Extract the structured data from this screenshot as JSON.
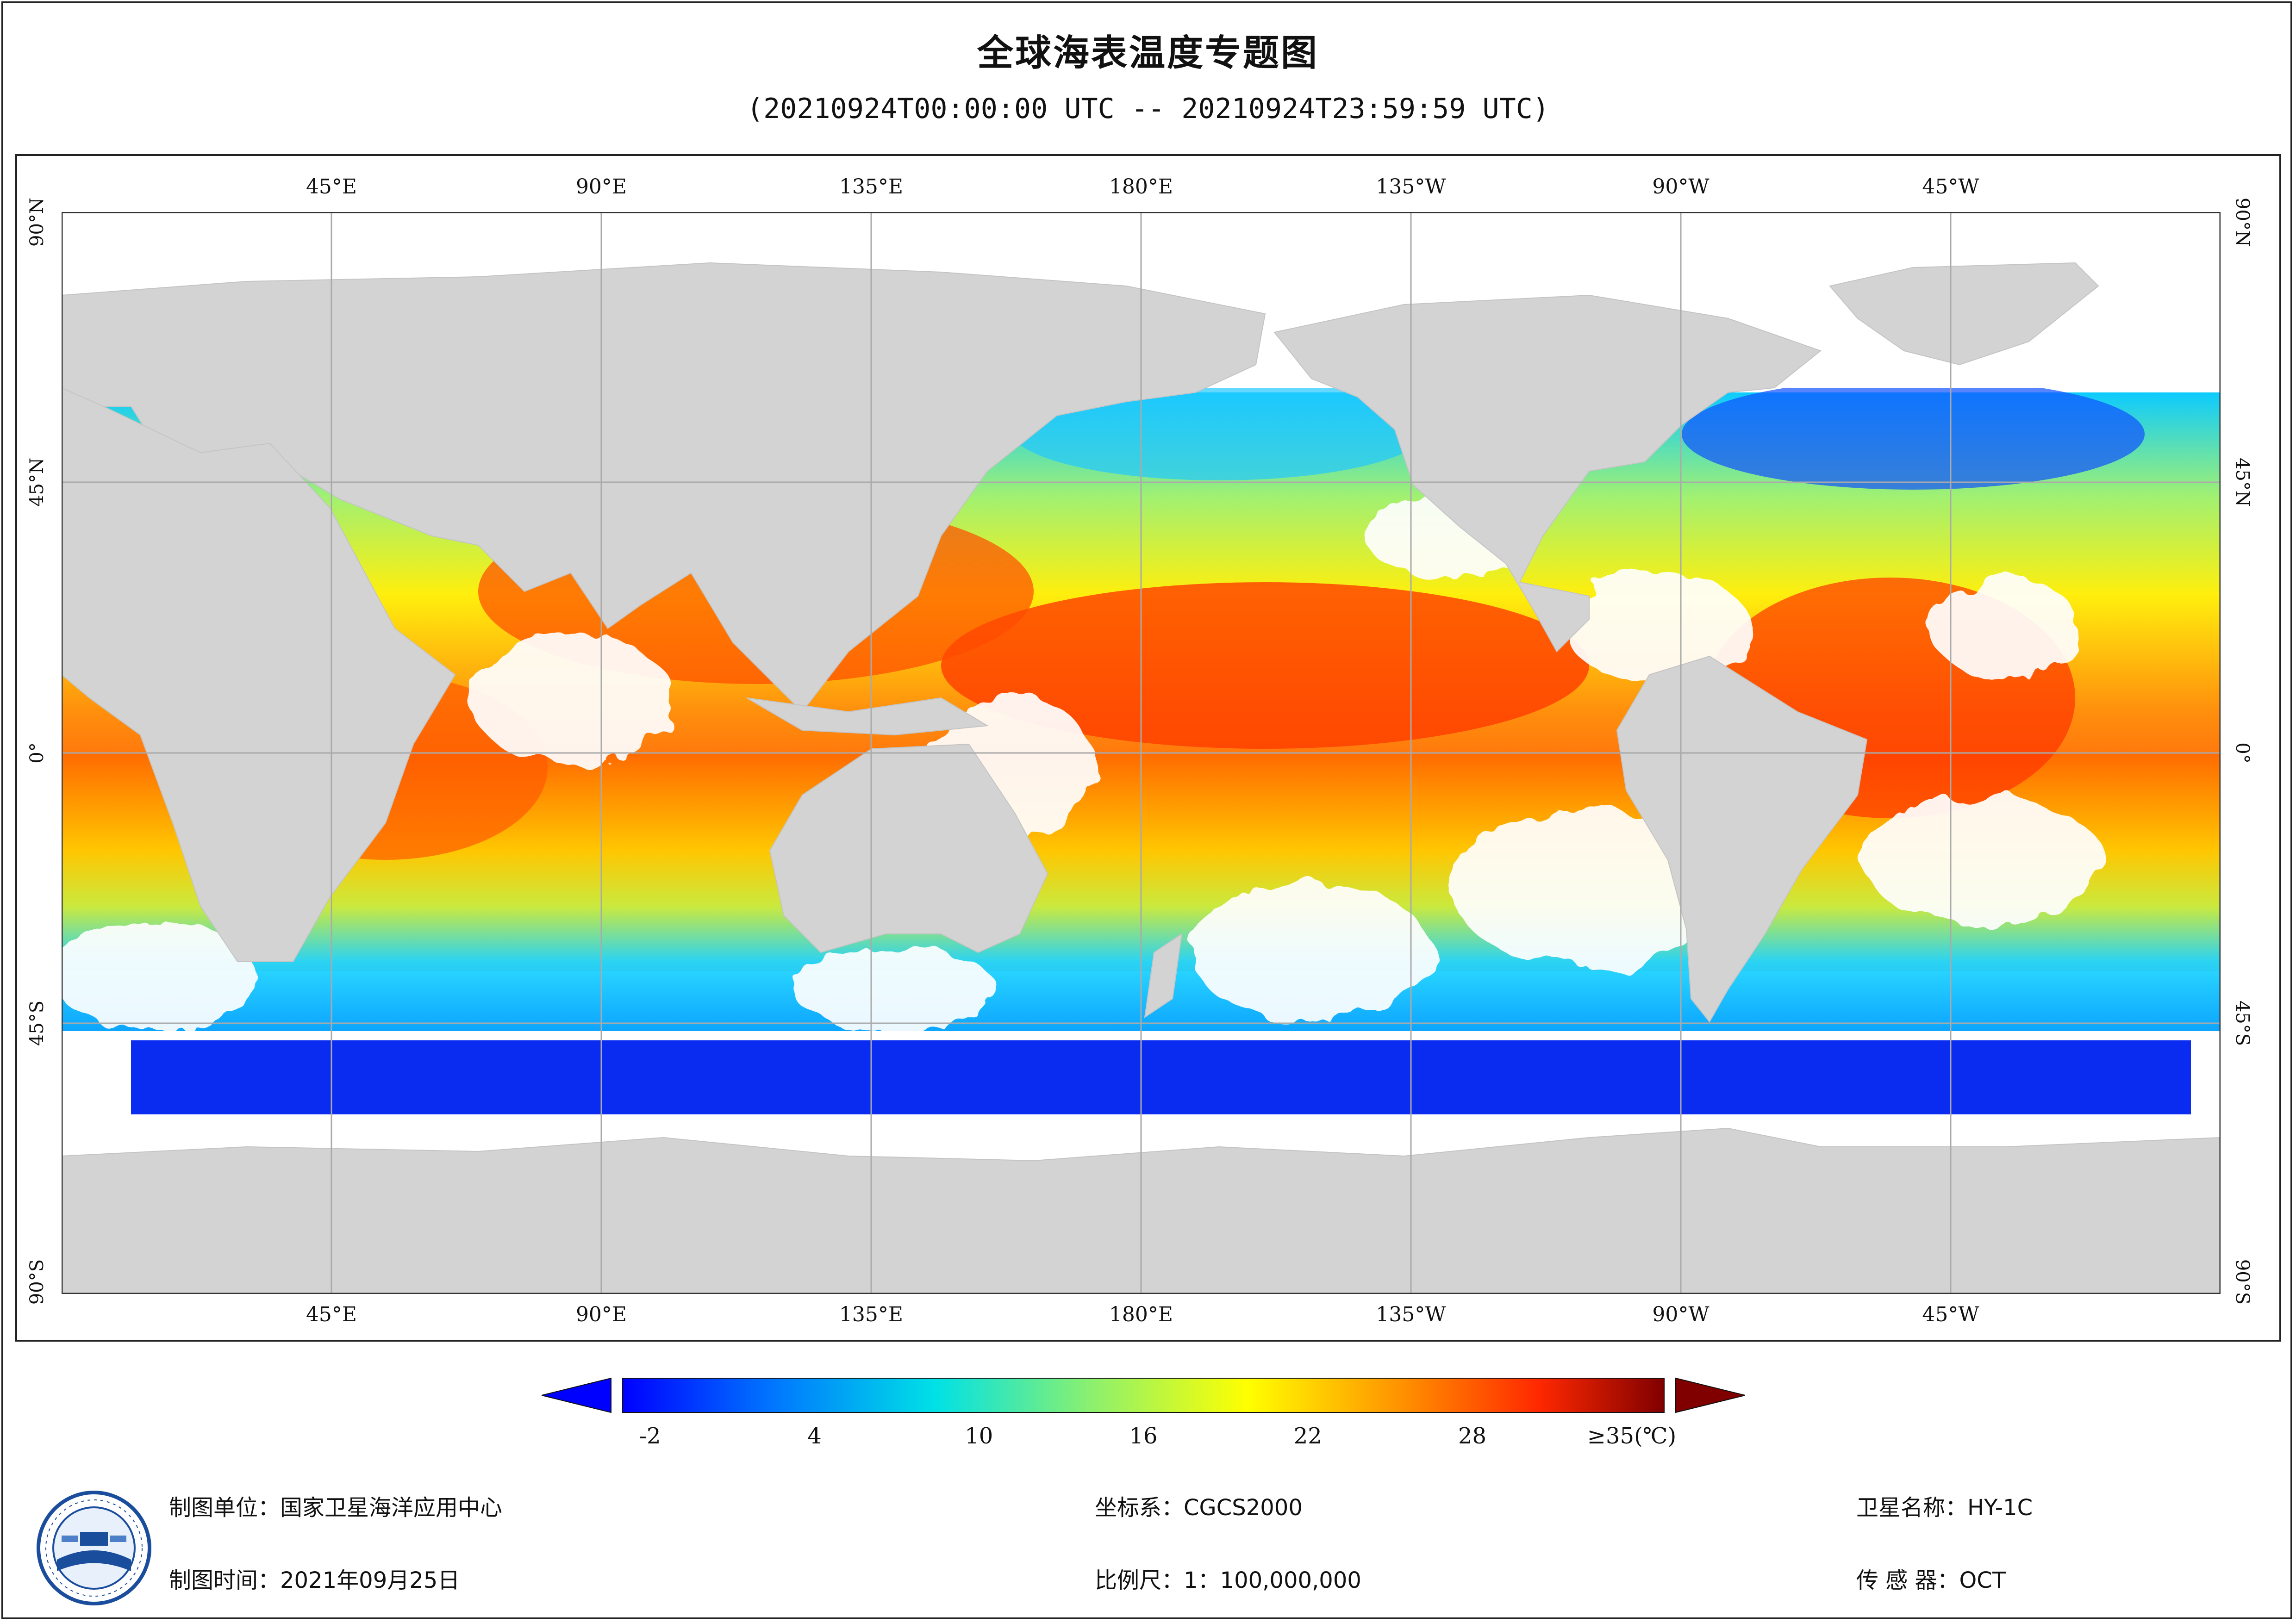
{
  "title": "全球海表温度专题图",
  "subtitle": "(20210924T00:00:00 UTC -- 20210924T23:59:59 UTC)",
  "map": {
    "longitude_labels": [
      "45°E",
      "90°E",
      "135°E",
      "180°E",
      "135°W",
      "90°W",
      "45°W"
    ],
    "latitude_labels": [
      "90°N",
      "45°N",
      "0°",
      "45°S",
      "90°S"
    ],
    "projection_extent": {
      "lon": [
        -180,
        180
      ],
      "lat": [
        -90,
        90
      ]
    },
    "colors": {
      "land": "#d3d3d3",
      "no_data": "#ffffff",
      "grid": "#aaaaaa",
      "frame": "#222222"
    }
  },
  "colorbar": {
    "tick_labels": [
      "-2",
      "4",
      "10",
      "16",
      "22",
      "28",
      "≥35(℃)"
    ],
    "tick_values": [
      -2,
      4,
      10,
      16,
      22,
      28,
      35
    ],
    "range": [
      -3,
      35
    ],
    "colors": [
      "#0000ff",
      "#0073ff",
      "#00e1e6",
      "#8cf06e",
      "#ffff00",
      "#ff9000",
      "#ff2800",
      "#800000"
    ],
    "extend_min_color": "#0000ff",
    "extend_max_color": "#800000"
  },
  "footer": {
    "producer": "制图单位：国家卫星海洋应用中心",
    "date": "制图时间：2021年09月25日",
    "crs": "坐标系：CGCS2000",
    "scale": "比例尺：1：100,000,000",
    "satellite": "卫星名称：HY-1C",
    "sensor": "传 感 器：OCT"
  }
}
